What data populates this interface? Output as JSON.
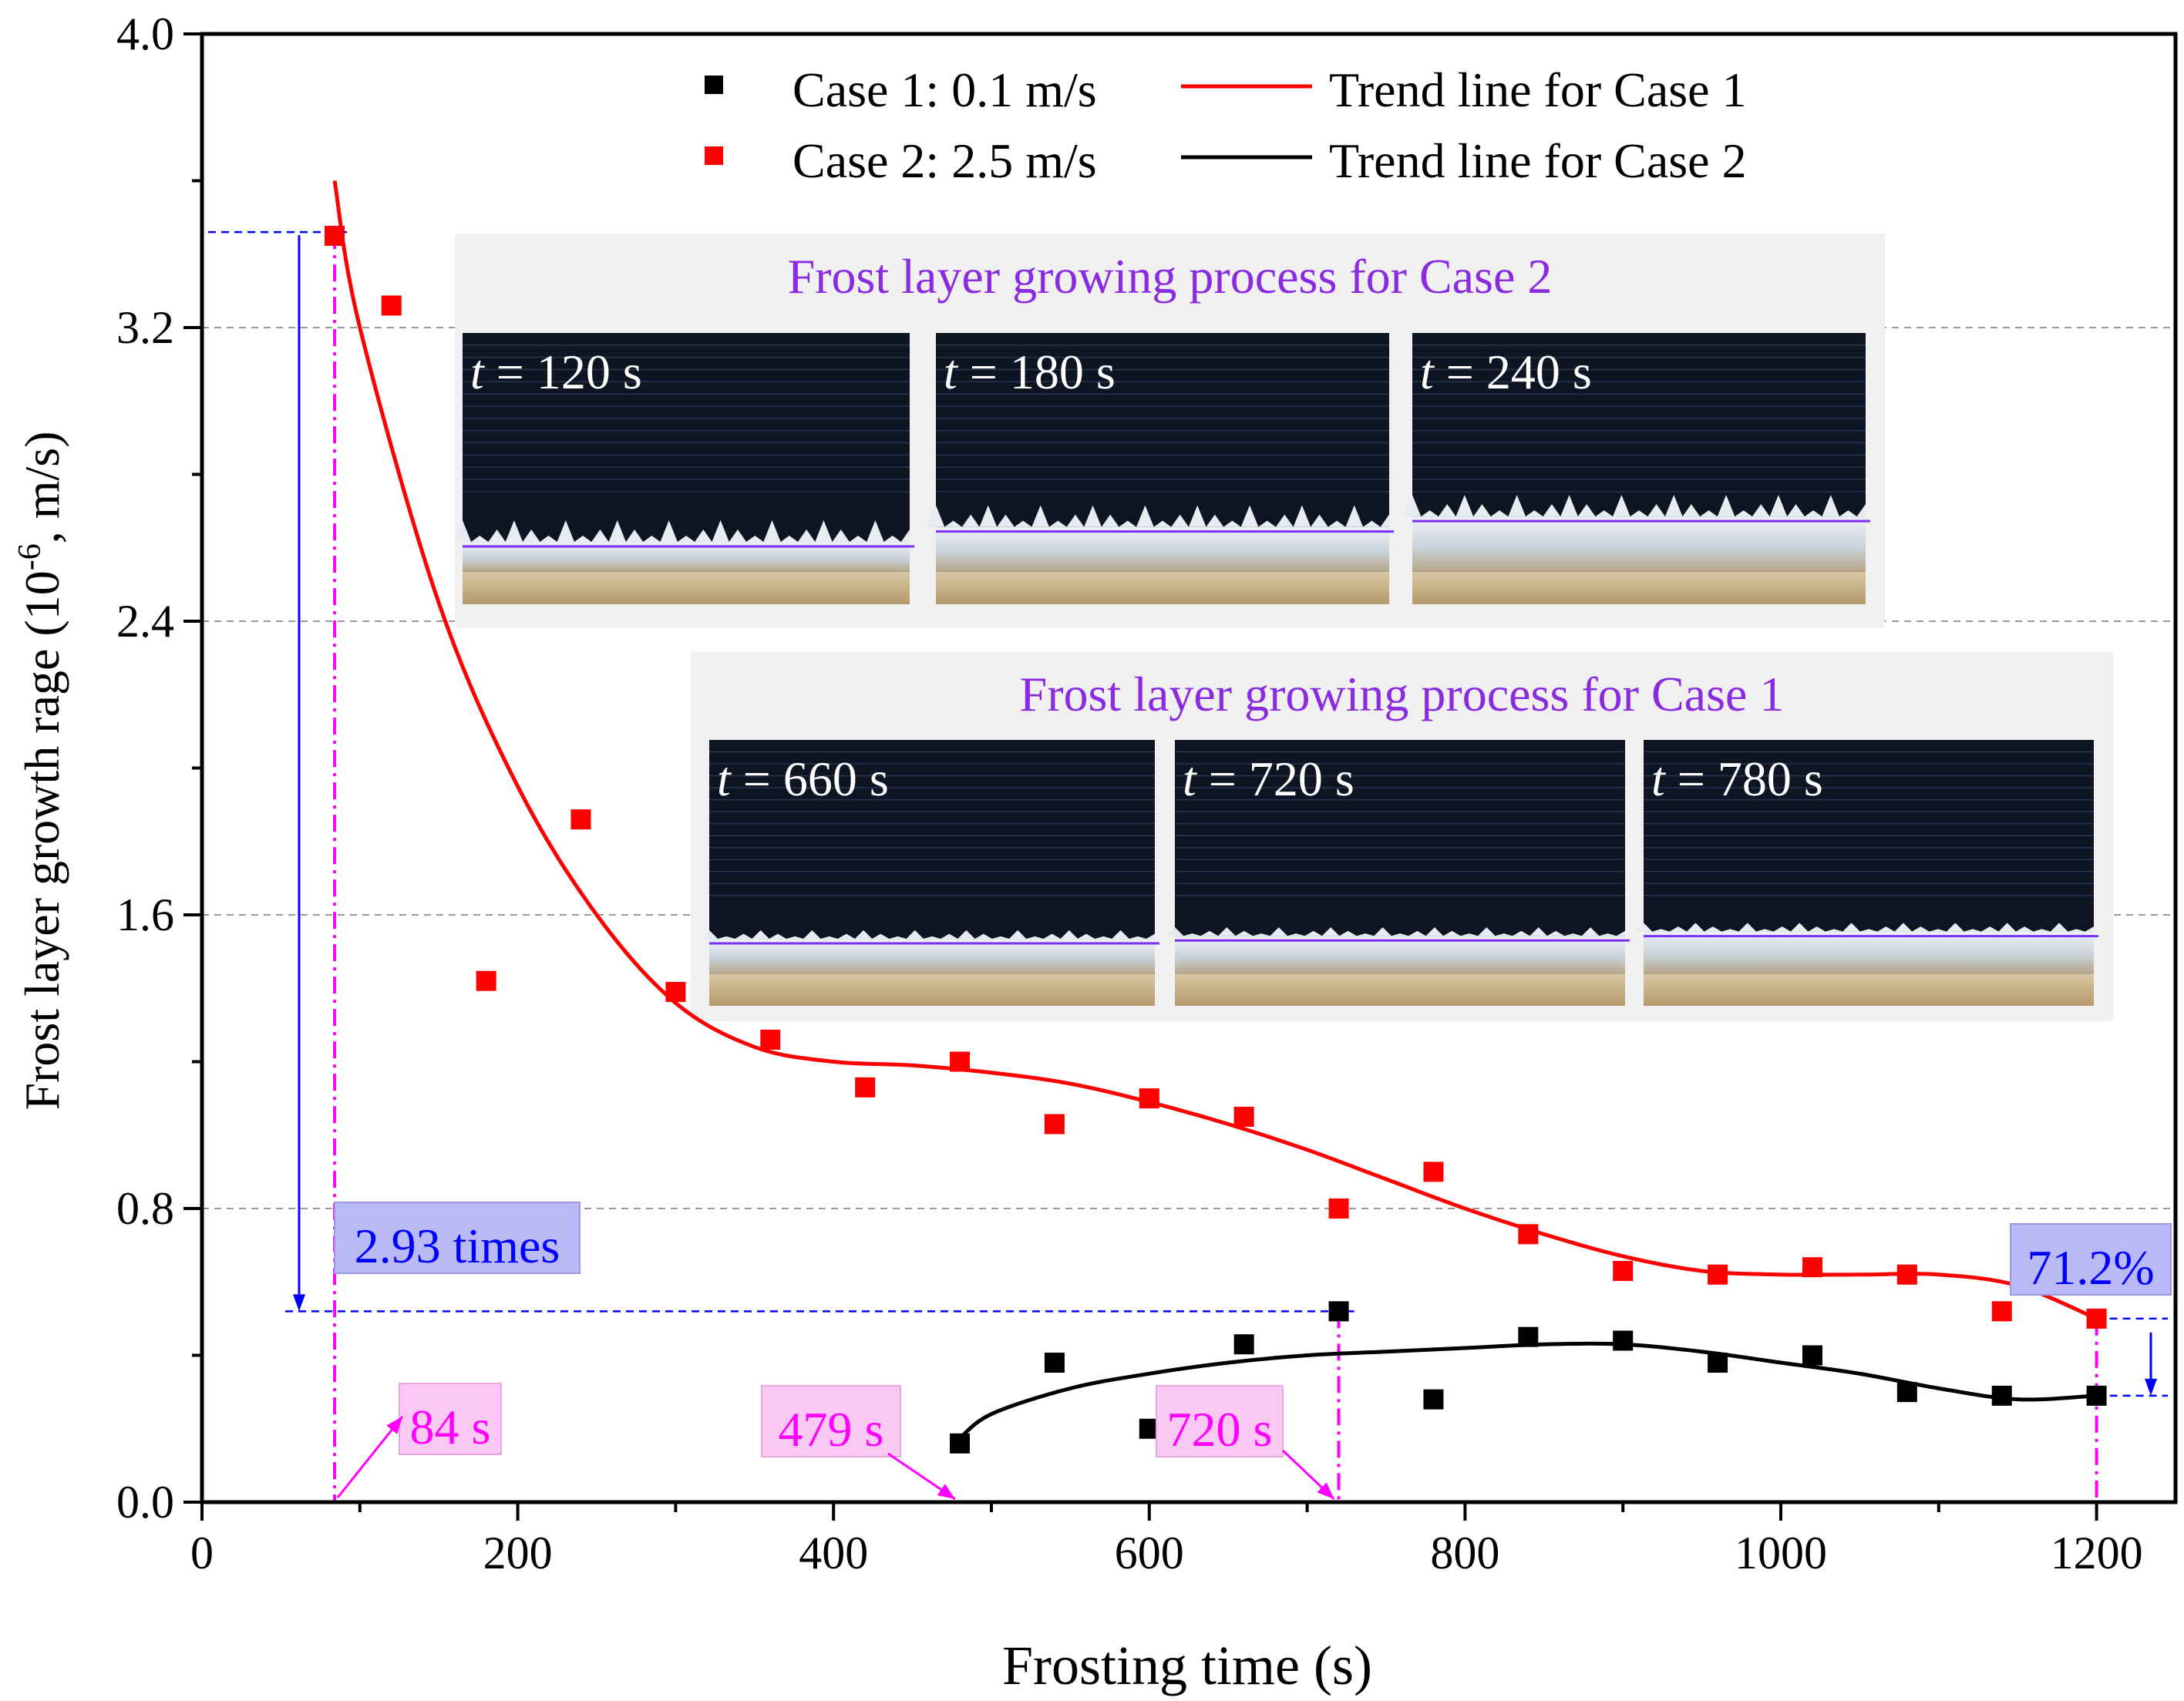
{
  "colors": {
    "case1_marker": "#000000",
    "case2_marker": "#ff0000",
    "case1_trend": "#ff0000",
    "case2_trend": "#000000",
    "annotation_blue": "#0000ff",
    "annotation_magenta": "#ff00ff",
    "photo_line": "#7b2ff7",
    "inset_title": "#8a2be2",
    "grid": "#999999",
    "inset_bg": "#f0f0f0",
    "photo_bg": "#0d1422"
  },
  "chart_data": {
    "type": "scatter",
    "title": "",
    "xlabel": "Frosting time (s)",
    "ylabel": "Frost layer growth rage (10⁻⁶, m/s)",
    "ylabel_base": "Frost layer growth rage (10",
    "ylabel_exp": "-6",
    "ylabel_tail": ", m/s)",
    "xlim": [
      0,
      1250
    ],
    "ylim": [
      0,
      4.0
    ],
    "xticks": [
      0,
      200,
      400,
      600,
      800,
      1000,
      1200
    ],
    "xtick_labels": [
      "0",
      "200",
      "400",
      "600",
      "800",
      "1000",
      "1200"
    ],
    "yticks": [
      0,
      0.8,
      1.6,
      2.4,
      3.2,
      4.0
    ],
    "ytick_labels": [
      "0.0",
      "0.8",
      "1.6",
      "2.4",
      "3.2",
      "4.0"
    ],
    "grid_y": [
      0.8,
      1.6,
      2.4,
      3.2
    ],
    "legend_position": "top-center",
    "series": [
      {
        "name": "Case 1: 0.1 m/s",
        "kind": "marker",
        "color": "#000000",
        "x": [
          480,
          540,
          600,
          660,
          720,
          780,
          840,
          900,
          960,
          1020,
          1080,
          1140,
          1200
        ],
        "y": [
          0.16,
          0.38,
          0.2,
          0.43,
          0.52,
          0.28,
          0.45,
          0.44,
          0.38,
          0.4,
          0.3,
          0.29,
          0.29
        ]
      },
      {
        "name": "Case 2: 2.5 m/s",
        "kind": "marker",
        "color": "#ff0000",
        "x": [
          84,
          120,
          180,
          240,
          300,
          360,
          420,
          480,
          540,
          600,
          660,
          720,
          780,
          840,
          900,
          960,
          1020,
          1080,
          1140,
          1200
        ],
        "y": [
          3.45,
          3.26,
          1.42,
          1.86,
          1.39,
          1.26,
          1.13,
          1.2,
          1.03,
          1.1,
          1.05,
          0.8,
          0.9,
          0.73,
          0.63,
          0.62,
          0.64,
          0.62,
          0.52,
          0.5
        ]
      },
      {
        "name": "Trend line for Case 1",
        "kind": "line",
        "color": "#ff0000",
        "x": [
          84,
          100,
          150,
          200,
          250,
          300,
          350,
          400,
          450,
          500,
          550,
          600,
          650,
          700,
          750,
          800,
          850,
          900,
          950,
          1000,
          1050,
          1100,
          1150,
          1200
        ],
        "y": [
          3.6,
          3.2,
          2.45,
          1.95,
          1.6,
          1.36,
          1.24,
          1.2,
          1.19,
          1.17,
          1.14,
          1.09,
          1.03,
          0.96,
          0.88,
          0.8,
          0.73,
          0.67,
          0.63,
          0.62,
          0.62,
          0.62,
          0.59,
          0.5
        ]
      },
      {
        "name": "Trend line for Case 2",
        "kind": "line",
        "color": "#000000",
        "x": [
          479,
          500,
          550,
          600,
          650,
          700,
          750,
          800,
          850,
          900,
          950,
          1000,
          1050,
          1100,
          1150,
          1200
        ],
        "y": [
          0.17,
          0.24,
          0.31,
          0.35,
          0.38,
          0.4,
          0.41,
          0.42,
          0.43,
          0.43,
          0.41,
          0.38,
          0.35,
          0.31,
          0.28,
          0.29
        ]
      }
    ],
    "annotations": {
      "times_label": "2.93 times",
      "percent_label": "71.2%",
      "time_84": "84 s",
      "time_479": "479 s",
      "time_720": "720 s",
      "top_ref_y": 3.46,
      "mid_ref_y": 0.52,
      "mark_x_84": 84,
      "mark_x_479": 479,
      "mark_x_720": 720,
      "mark_x_1200": 1200,
      "case2_end_y": 0.5,
      "case1_end_y": 0.29
    }
  },
  "insets": [
    {
      "title": "Frost layer growing process for Case 2",
      "photos": [
        {
          "t_var": "t",
          "t_rest": " = 120 s",
          "frost_fraction": 0.2
        },
        {
          "t_var": "t",
          "t_rest": " = 180 s",
          "frost_fraction": 0.3
        },
        {
          "t_var": "t",
          "t_rest": " = 240 s",
          "frost_fraction": 0.37
        }
      ]
    },
    {
      "title": "Frost layer growing process for Case 1",
      "photos": [
        {
          "t_var": "t",
          "t_rest": " = 660 s",
          "frost_fraction": 0.24
        },
        {
          "t_var": "t",
          "t_rest": " = 720 s",
          "frost_fraction": 0.26
        },
        {
          "t_var": "t",
          "t_rest": " = 780 s",
          "frost_fraction": 0.29
        }
      ]
    }
  ]
}
